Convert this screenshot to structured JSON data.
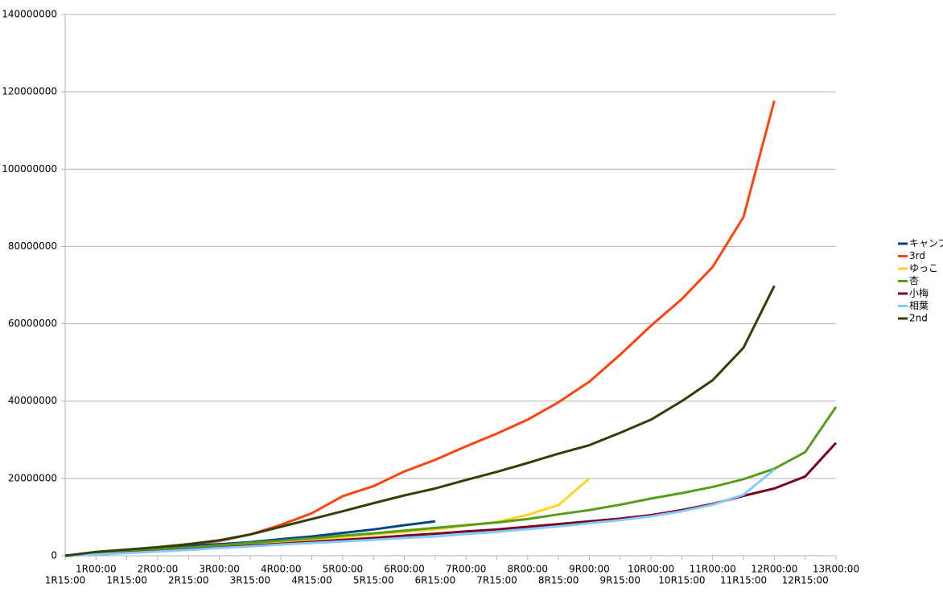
{
  "chart_data": {
    "type": "line",
    "categories": [
      "1R15:00",
      "1R00:00",
      "1R15:00",
      "2R00:00",
      "2R15:00",
      "3R00:00",
      "3R15:00",
      "4R00:00",
      "4R15:00",
      "5R00:00",
      "5R15:00",
      "6R00:00",
      "6R15:00",
      "7R00:00",
      "7R15:00",
      "8R00:00",
      "8R15:00",
      "9R00:00",
      "9R15:00",
      "10R00:00",
      "10R15:00",
      "11R00:00",
      "11R15:00",
      "12R00:00",
      "12R15:00",
      "13R00:00"
    ],
    "ylim": [
      0,
      140000000
    ],
    "yticks": [
      0,
      20000000,
      40000000,
      60000000,
      80000000,
      100000000,
      120000000,
      140000000
    ],
    "grid": true,
    "legend": "right",
    "series": [
      {
        "name": "キャンプ",
        "color": "#004586",
        "values": [
          0,
          800000,
          1400000,
          2000000,
          2600000,
          3000000,
          3500000,
          4300000,
          5000000,
          5900000,
          6800000,
          7900000,
          8900000,
          null,
          null,
          null,
          null,
          null,
          null,
          null,
          null,
          null,
          null,
          null,
          null,
          null
        ]
      },
      {
        "name": "3rd",
        "color": "#ff420e",
        "values": [
          0,
          800000,
          1500000,
          2200000,
          3000000,
          3800000,
          5500000,
          8000000,
          11000000,
          15400000,
          18000000,
          21800000,
          24800000,
          28300000,
          31600000,
          35200000,
          39700000,
          45000000,
          52000000,
          59500000,
          66400000,
          74700000,
          87600000,
          117700000,
          null,
          null
        ]
      },
      {
        "name": "ゆっこ",
        "color": "#ffd320",
        "values": [
          0,
          600000,
          1200000,
          1600000,
          2000000,
          2500000,
          3000000,
          3500000,
          4100000,
          4800000,
          5500000,
          6200000,
          6800000,
          7800000,
          8700000,
          10600000,
          13100000,
          20000000,
          null,
          null,
          null,
          null,
          null,
          null,
          null,
          null
        ]
      },
      {
        "name": "杏",
        "color": "#579d1c",
        "values": [
          0,
          500000,
          1100000,
          1600000,
          2100000,
          2700000,
          3300000,
          3900000,
          4500000,
          5200000,
          5800000,
          6500000,
          7200000,
          7900000,
          8600000,
          9500000,
          10700000,
          11800000,
          13200000,
          14800000,
          16200000,
          17800000,
          19800000,
          22500000,
          26800000,
          38500000
        ]
      },
      {
        "name": "小梅",
        "color": "#7e0021",
        "values": [
          0,
          300000,
          800000,
          1200000,
          1600000,
          2100000,
          2600000,
          3100000,
          3600000,
          4100000,
          4600000,
          5200000,
          5700000,
          6300000,
          6800000,
          7500000,
          8200000,
          8900000,
          9600000,
          10500000,
          11800000,
          13400000,
          15500000,
          17400000,
          20500000,
          29200000
        ]
      },
      {
        "name": "相葉",
        "color": "#83caff",
        "values": [
          0,
          300000,
          700000,
          1100000,
          1500000,
          2000000,
          2400000,
          2900000,
          3300000,
          3700000,
          4100000,
          4600000,
          5000000,
          5600000,
          6200000,
          6900000,
          7600000,
          8400000,
          9200000,
          10200000,
          11500000,
          13200000,
          15800000,
          22300000,
          null,
          null
        ]
      },
      {
        "name": "2nd",
        "color": "#314004",
        "values": [
          0,
          1000000,
          1600000,
          2200000,
          3000000,
          4000000,
          5500000,
          7500000,
          9500000,
          11500000,
          13600000,
          15600000,
          17400000,
          19600000,
          21700000,
          24000000,
          26400000,
          28600000,
          31800000,
          35200000,
          40000000,
          45400000,
          53800000,
          69800000,
          null,
          null
        ]
      }
    ]
  }
}
